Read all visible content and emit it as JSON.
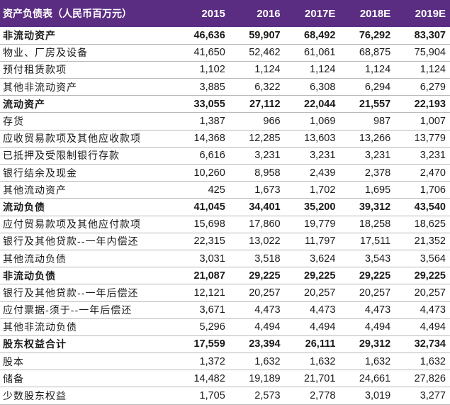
{
  "table": {
    "header": [
      "资产负债表（人民币百万元）",
      "2015",
      "2016",
      "2017E",
      "2018E",
      "2019E"
    ],
    "rows": [
      {
        "label": "非流动资产",
        "bold": true,
        "values": [
          "46,636",
          "59,907",
          "68,492",
          "76,292",
          "83,307"
        ]
      },
      {
        "label": "物业、厂房及设备",
        "bold": false,
        "values": [
          "41,650",
          "52,462",
          "61,061",
          "68,875",
          "75,904"
        ]
      },
      {
        "label": "预付租赁款项",
        "bold": false,
        "values": [
          "1,102",
          "1,124",
          "1,124",
          "1,124",
          "1,124"
        ]
      },
      {
        "label": "其他非流动资产",
        "bold": false,
        "values": [
          "3,885",
          "6,322",
          "6,308",
          "6,294",
          "6,279"
        ]
      },
      {
        "label": "流动资产",
        "bold": true,
        "values": [
          "33,055",
          "27,112",
          "22,044",
          "21,557",
          "22,193"
        ]
      },
      {
        "label": "存货",
        "bold": false,
        "values": [
          "1,387",
          "966",
          "1,069",
          "987",
          "1,007"
        ]
      },
      {
        "label": "应收贸易款项及其他应收款项",
        "bold": false,
        "values": [
          "14,368",
          "12,285",
          "13,603",
          "13,266",
          "13,779"
        ]
      },
      {
        "label": "已抵押及受限制银行存款",
        "bold": false,
        "values": [
          "6,616",
          "3,231",
          "3,231",
          "3,231",
          "3,231"
        ]
      },
      {
        "label": "银行结余及现金",
        "bold": false,
        "values": [
          "10,260",
          "8,958",
          "2,439",
          "2,378",
          "2,470"
        ]
      },
      {
        "label": "其他流动资产",
        "bold": false,
        "values": [
          "425",
          "1,673",
          "1,702",
          "1,695",
          "1,706"
        ]
      },
      {
        "label": "流动负债",
        "bold": true,
        "values": [
          "41,045",
          "34,401",
          "35,200",
          "39,312",
          "43,540"
        ]
      },
      {
        "label": "应付贸易款项及其他应付款项",
        "bold": false,
        "values": [
          "15,698",
          "17,860",
          "19,779",
          "18,258",
          "18,625"
        ]
      },
      {
        "label": "银行及其他贷款--一年内偿还",
        "bold": false,
        "values": [
          "22,315",
          "13,022",
          "11,797",
          "17,511",
          "21,352"
        ]
      },
      {
        "label": "其他流动负债",
        "bold": false,
        "values": [
          "3,031",
          "3,518",
          "3,624",
          "3,543",
          "3,564"
        ]
      },
      {
        "label": "非流动负债",
        "bold": true,
        "values": [
          "21,087",
          "29,225",
          "29,225",
          "29,225",
          "29,225"
        ]
      },
      {
        "label": "银行及其他贷款--一年后偿还",
        "bold": false,
        "values": [
          "12,121",
          "20,257",
          "20,257",
          "20,257",
          "20,257"
        ]
      },
      {
        "label": "应付票据-须于--一年后偿还",
        "bold": false,
        "values": [
          "3,671",
          "4,473",
          "4,473",
          "4,473",
          "4,473"
        ]
      },
      {
        "label": "其他非流动负债",
        "bold": false,
        "values": [
          "5,296",
          "4,494",
          "4,494",
          "4,494",
          "4,494"
        ]
      },
      {
        "label": "股东权益合计",
        "bold": true,
        "values": [
          "17,559",
          "23,394",
          "26,111",
          "29,312",
          "32,734"
        ]
      },
      {
        "label": "股本",
        "bold": false,
        "values": [
          "1,372",
          "1,632",
          "1,632",
          "1,632",
          "1,632"
        ]
      },
      {
        "label": "储备",
        "bold": false,
        "values": [
          "14,482",
          "19,189",
          "21,701",
          "24,661",
          "27,826"
        ]
      },
      {
        "label": "少数股东权益",
        "bold": false,
        "values": [
          "1,705",
          "2,573",
          "2,778",
          "3,019",
          "3,277"
        ]
      }
    ]
  }
}
